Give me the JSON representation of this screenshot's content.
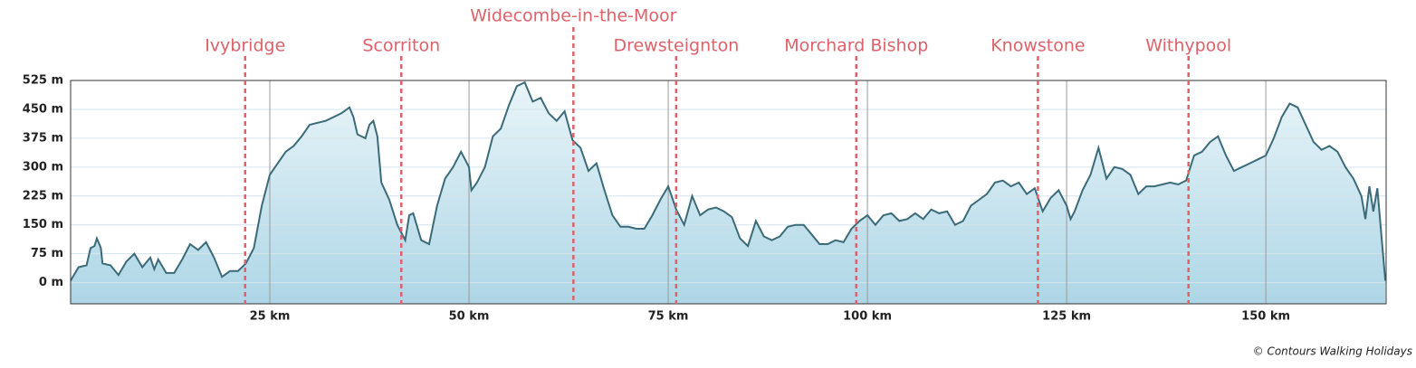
{
  "chart_data": {
    "type": "area",
    "color": "#3b6b79",
    "fill_top": "#e9f5f9",
    "fill_bottom": "#aed6e6",
    "marker_color": "#e0616a",
    "grid": true,
    "xlim": [
      0,
      165.1
    ],
    "ylim": [
      -55,
      525
    ],
    "xticks": [
      {
        "value": 25,
        "label": "25 km"
      },
      {
        "value": 50,
        "label": "50 km"
      },
      {
        "value": 75,
        "label": "75 km"
      },
      {
        "value": 100,
        "label": "100 km"
      },
      {
        "value": 125,
        "label": "125 km"
      },
      {
        "value": 150,
        "label": "150 km"
      }
    ],
    "yticks": [
      {
        "value": 0,
        "label": "0 m"
      },
      {
        "value": 75,
        "label": "75 m"
      },
      {
        "value": 150,
        "label": "150 m"
      },
      {
        "value": 225,
        "label": "225 m"
      },
      {
        "value": 300,
        "label": "300 m"
      },
      {
        "value": 375,
        "label": "375 m"
      },
      {
        "value": 450,
        "label": "450 m"
      },
      {
        "value": 525,
        "label": "525 m"
      }
    ],
    "markers": [
      {
        "label": "Ivybridge",
        "x": 21.9
      },
      {
        "label": "Scorriton",
        "x": 41.5
      },
      {
        "label": "Widecombe-in-the-Moor",
        "x": 63.1
      },
      {
        "label": "Drewsteignton",
        "x": 76.0
      },
      {
        "label": "Morchard Bishop",
        "x": 98.6
      },
      {
        "label": "Knowstone",
        "x": 121.4
      },
      {
        "label": "Withypool",
        "x": 140.3
      }
    ],
    "credit": "© Contours Walking Holidays",
    "x": [
      0,
      1,
      2,
      2.5,
      3,
      3.3,
      3.8,
      4,
      5,
      6,
      7,
      8,
      9,
      10,
      10.5,
      11,
      12,
      13,
      14,
      15,
      16,
      17,
      18,
      19,
      20,
      21,
      22,
      23,
      24,
      25,
      26,
      27,
      28,
      29,
      30,
      31,
      32,
      33,
      34,
      35,
      35.5,
      36,
      37,
      37.5,
      38,
      38.5,
      39,
      40,
      41,
      42,
      42.5,
      43,
      44,
      45,
      46,
      47,
      48,
      49,
      50,
      50.3,
      51,
      52,
      53,
      54,
      55,
      56,
      57,
      58,
      59,
      60,
      61,
      62,
      63,
      64,
      65,
      66,
      67,
      68,
      69,
      70,
      71,
      72,
      73,
      74,
      75,
      76,
      77,
      78,
      79,
      80,
      81,
      82,
      83,
      84,
      85,
      86,
      87,
      88,
      89,
      90,
      91,
      92,
      93,
      94,
      95,
      96,
      97,
      98,
      99,
      100,
      101,
      102,
      103,
      104,
      105,
      106,
      107,
      108,
      109,
      110,
      111,
      112,
      113,
      114,
      115,
      116,
      117,
      118,
      119,
      120,
      121,
      122,
      123,
      124,
      125,
      125.5,
      126,
      127,
      128,
      129,
      130,
      131,
      132,
      133,
      134,
      135,
      136,
      137,
      138,
      139,
      140,
      141,
      142,
      143,
      144,
      145,
      146,
      147,
      148,
      149,
      150,
      151,
      152,
      153,
      154,
      155,
      156,
      157,
      158,
      159,
      160,
      161,
      162,
      162.5,
      163,
      163.5,
      164,
      165
    ],
    "values": [
      5,
      40,
      45,
      90,
      95,
      115,
      90,
      50,
      45,
      20,
      55,
      75,
      40,
      65,
      35,
      60,
      25,
      25,
      60,
      100,
      85,
      105,
      65,
      15,
      30,
      30,
      50,
      90,
      200,
      280,
      310,
      340,
      355,
      380,
      410,
      415,
      420,
      430,
      440,
      455,
      430,
      385,
      375,
      410,
      420,
      380,
      260,
      215,
      150,
      110,
      175,
      180,
      110,
      100,
      200,
      270,
      300,
      340,
      300,
      240,
      260,
      300,
      380,
      400,
      460,
      510,
      520,
      470,
      480,
      440,
      420,
      445,
      370,
      350,
      290,
      310,
      240,
      175,
      145,
      145,
      140,
      140,
      175,
      215,
      250,
      190,
      150,
      225,
      175,
      190,
      195,
      185,
      170,
      115,
      95,
      160,
      120,
      110,
      120,
      145,
      150,
      150,
      125,
      100,
      100,
      110,
      105,
      140,
      160,
      175,
      150,
      175,
      180,
      160,
      165,
      180,
      165,
      190,
      180,
      185,
      150,
      160,
      200,
      215,
      230,
      260,
      265,
      250,
      260,
      230,
      245,
      185,
      220,
      240,
      200,
      165,
      185,
      240,
      280,
      350,
      270,
      300,
      295,
      280,
      230,
      250,
      250,
      255,
      260,
      255,
      265,
      330,
      340,
      365,
      380,
      330,
      290,
      300,
      310,
      320,
      330,
      375,
      430,
      465,
      455,
      410,
      365,
      345,
      355,
      340,
      300,
      270,
      225,
      165,
      250,
      185,
      245,
      5
    ]
  }
}
